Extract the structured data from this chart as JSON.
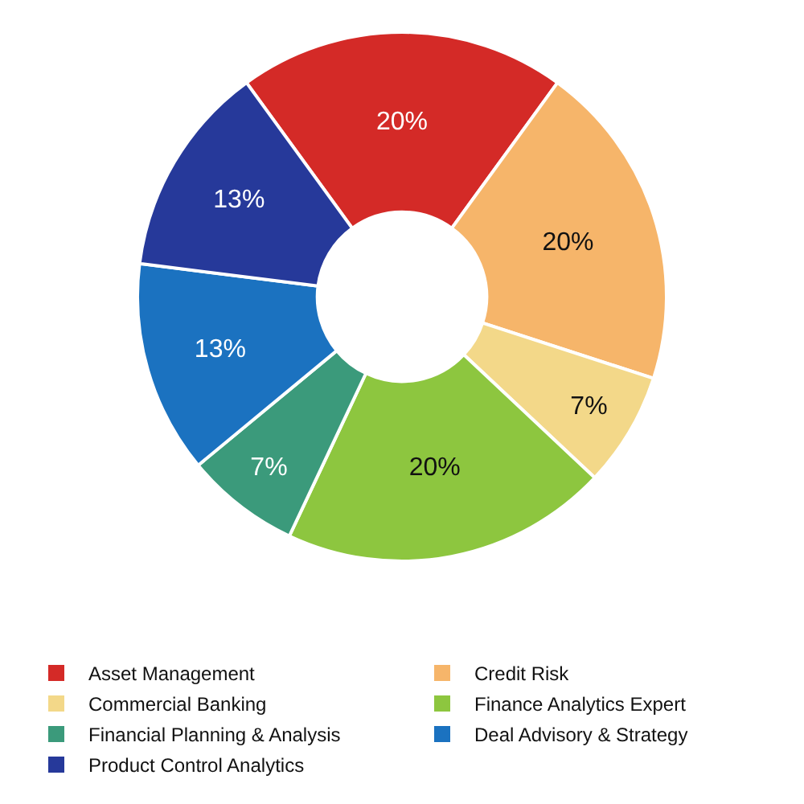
{
  "chart_data": {
    "type": "donut",
    "categories": [
      "Asset Management",
      "Credit Risk",
      "Commercial Banking",
      "Finance Analytics Expert",
      "Financial Planning & Analysis",
      "Deal Advisory & Strategy",
      "Product Control Analytics"
    ],
    "values": [
      20,
      20,
      7,
      20,
      7,
      13,
      13
    ],
    "value_labels": [
      "20%",
      "20%",
      "7%",
      "20%",
      "7%",
      "13%",
      "13%"
    ],
    "colors": [
      "#d42a27",
      "#f6b56a",
      "#f3d889",
      "#8dc63f",
      "#3b9a7b",
      "#1b72c0",
      "#26399a"
    ],
    "legend": "bottom"
  }
}
